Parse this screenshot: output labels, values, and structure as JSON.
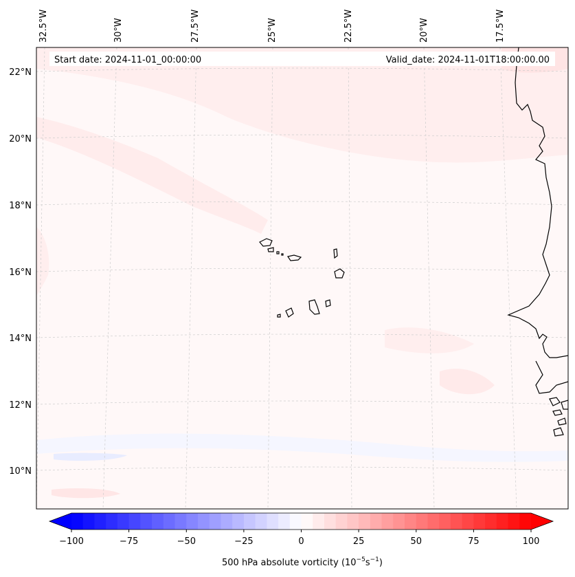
{
  "map": {
    "start_date": "Start date: 2024-11-01_00:00:00",
    "valid_date": "Valid_date: 2024-11-01T18:00:00.00",
    "lon_labels": [
      "32.5°W",
      "30°W",
      "27.5°W",
      "25°W",
      "22.5°W",
      "20°W",
      "17.5°W"
    ],
    "lat_labels": [
      "22°N",
      "20°N",
      "18°N",
      "16°N",
      "14°N",
      "12°N",
      "10°N"
    ],
    "region": "Cape Verde and West African coast",
    "field_description": "500 hPa absolute vorticity, mostly weak positive values"
  },
  "colorbar": {
    "ticks": [
      "−100",
      "−75",
      "−50",
      "−25",
      "0",
      "25",
      "50",
      "75",
      "100"
    ],
    "label": "500 hPa absolute vorticity (10",
    "label_exp1": "−5",
    "label_mid": "s",
    "label_exp2": "−1",
    "label_close": ")",
    "min": -100,
    "max": 100,
    "low_color": "#0000ff",
    "mid_color": "#ffffff",
    "high_color": "#ff0000"
  }
}
